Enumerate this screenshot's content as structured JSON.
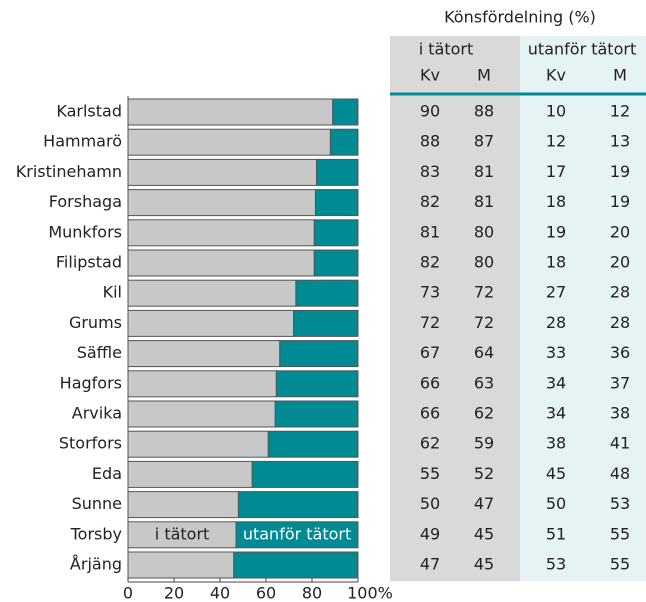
{
  "chart_data": {
    "type": "stacked-barh",
    "categories": [
      "Karlstad",
      "Hammarö",
      "Kristinehamn",
      "Forshaga",
      "Munkfors",
      "Filipstad",
      "Kil",
      "Grums",
      "Säffle",
      "Hagfors",
      "Arvika",
      "Storfors",
      "Eda",
      "Sunne",
      "Torsby",
      "Årjäng"
    ],
    "series": [
      {
        "name": "i tätort",
        "color": "#c8c8c8",
        "values": [
          89,
          88,
          82,
          81.5,
          81,
          81,
          73,
          72,
          66,
          64.5,
          64,
          61,
          54,
          48,
          47,
          46
        ]
      },
      {
        "name": "utanför tätort",
        "color": "#008a93",
        "values": [
          11,
          12,
          18,
          18.5,
          19,
          19,
          27,
          28,
          34,
          35.5,
          36,
          39,
          46,
          52,
          53,
          54
        ]
      }
    ],
    "xlim": [
      0,
      100
    ],
    "xticks": [
      0,
      20,
      40,
      60,
      80,
      {
        "value": 100,
        "label": "100%"
      }
    ],
    "label_row": 14
  },
  "table": {
    "title": "Könsfördelning (%)",
    "groups": [
      "i tätort",
      "utanför tätort"
    ],
    "columns": [
      "Kv",
      "M",
      "Kv",
      "M"
    ],
    "rows": [
      [
        90,
        88,
        10,
        12
      ],
      [
        88,
        87,
        12,
        13
      ],
      [
        83,
        81,
        17,
        19
      ],
      [
        82,
        81,
        18,
        19
      ],
      [
        81,
        80,
        19,
        20
      ],
      [
        82,
        80,
        18,
        20
      ],
      [
        73,
        72,
        27,
        28
      ],
      [
        72,
        72,
        28,
        28
      ],
      [
        67,
        64,
        33,
        36
      ],
      [
        66,
        63,
        34,
        37
      ],
      [
        66,
        62,
        34,
        38
      ],
      [
        62,
        59,
        38,
        41
      ],
      [
        55,
        52,
        45,
        48
      ],
      [
        50,
        47,
        50,
        53
      ],
      [
        49,
        45,
        51,
        55
      ],
      [
        47,
        45,
        53,
        55
      ]
    ]
  }
}
